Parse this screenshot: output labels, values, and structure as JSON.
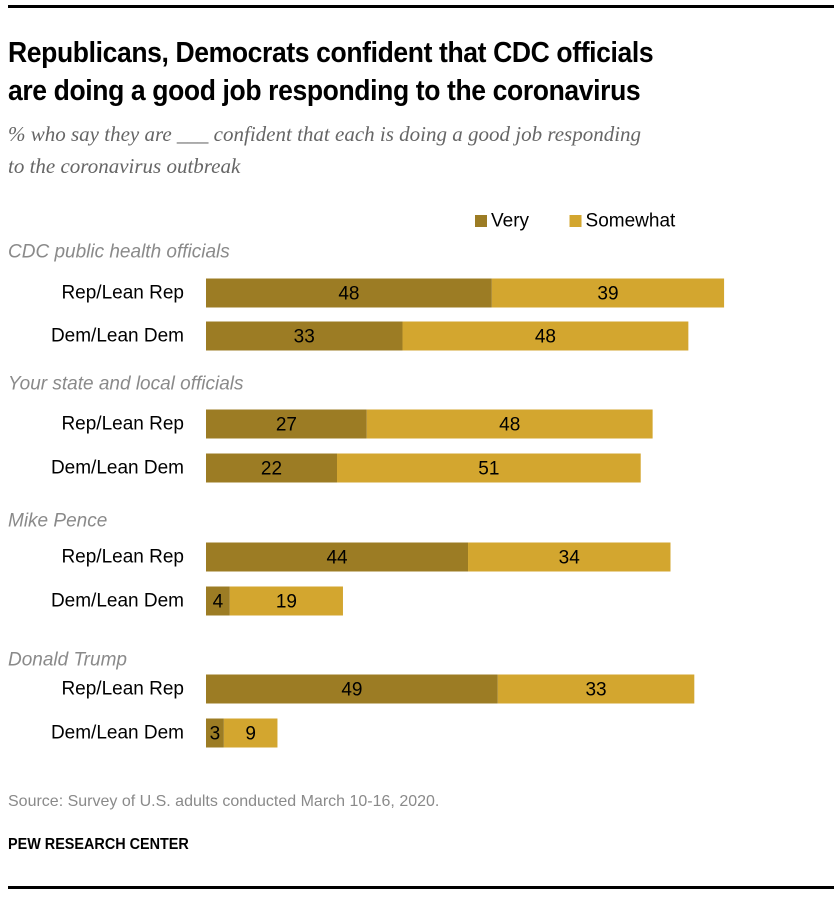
{
  "header": {
    "title_line1": "Republicans, Democrats confident that CDC officials",
    "title_line2": "are doing a good job responding to the coronavirus",
    "subtitle_line1": "% who say they are ___ confident that each is doing a good job responding",
    "subtitle_line2": "to the coronavirus outbreak"
  },
  "footer": {
    "source": "Source: Survey of U.S. adults conducted March 10-16, 2020.",
    "brand": "PEW RESEARCH CENTER"
  },
  "chart_data": {
    "type": "bar",
    "orientation": "horizontal",
    "stacked": true,
    "title": "Republicans, Democrats confident that CDC officials are doing a good job responding to the coronavirus",
    "subtitle": "% who say they are ___ confident that each is doing a good job responding to the coronavirus outbreak",
    "legend": {
      "placement": "top",
      "entries": [
        {
          "name": "Very",
          "color": "#9c7c24"
        },
        {
          "name": "Somewhat",
          "color": "#d3a62f"
        }
      ]
    },
    "groups": [
      {
        "label": "CDC public health officials",
        "rows": [
          {
            "label": "Rep/Lean Rep",
            "very": 48,
            "somewhat": 39
          },
          {
            "label": "Dem/Lean Dem",
            "very": 33,
            "somewhat": 48
          }
        ]
      },
      {
        "label": "Your state and local officials",
        "rows": [
          {
            "label": "Rep/Lean Rep",
            "very": 27,
            "somewhat": 48
          },
          {
            "label": "Dem/Lean Dem",
            "very": 22,
            "somewhat": 51
          }
        ]
      },
      {
        "label": "Mike Pence",
        "rows": [
          {
            "label": "Rep/Lean Rep",
            "very": 44,
            "somewhat": 34
          },
          {
            "label": "Dem/Lean Dem",
            "very": 4,
            "somewhat": 19
          }
        ]
      },
      {
        "label": "Donald Trump",
        "rows": [
          {
            "label": "Rep/Lean Rep",
            "very": 49,
            "somewhat": 33
          },
          {
            "label": "Dem/Lean Dem",
            "very": 3,
            "somewhat": 9
          }
        ]
      }
    ],
    "xlim": [
      0,
      100
    ],
    "grid": false,
    "source": "Source: Survey of U.S. adults conducted March 10-16, 2020."
  }
}
